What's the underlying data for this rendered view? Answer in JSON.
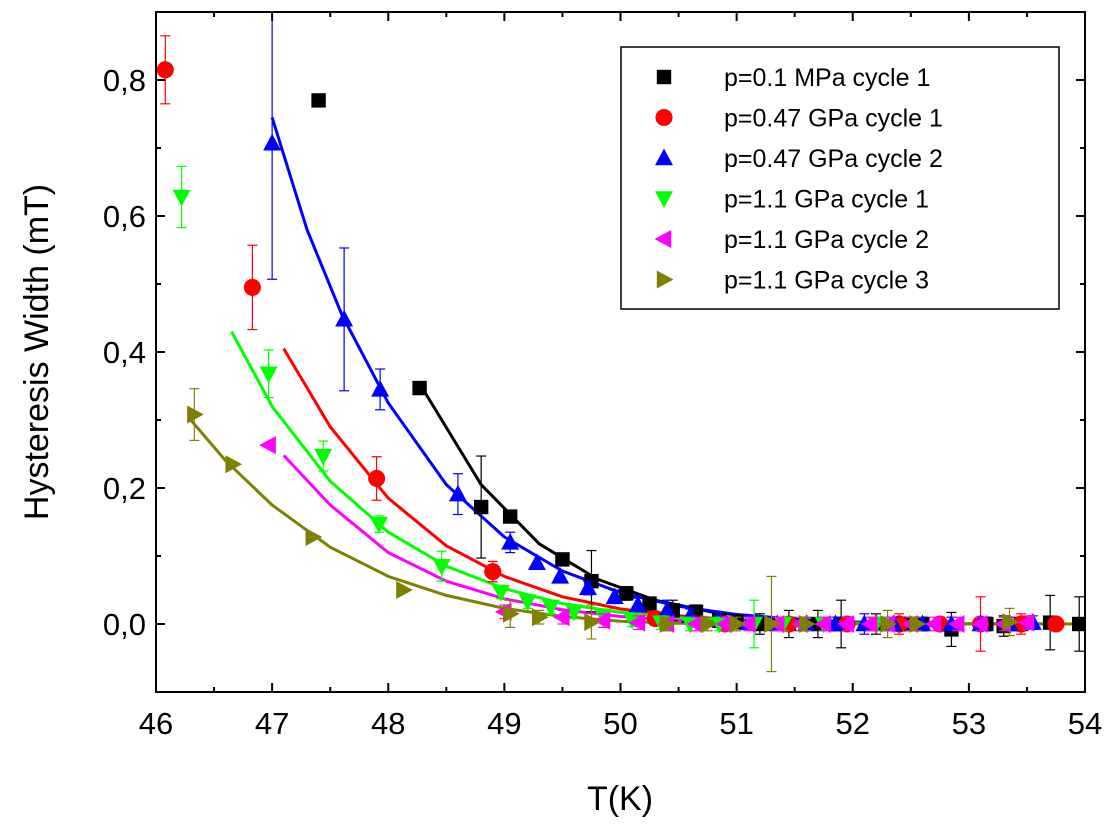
{
  "chart_data": {
    "type": "scatter",
    "xlabel": "T(K)",
    "ylabel": "Hysteresis Width (mT)",
    "xlim": [
      46,
      54
    ],
    "ylim": [
      -0.1,
      0.9
    ],
    "x_ticks": [
      46,
      47,
      48,
      49,
      50,
      51,
      52,
      53,
      54
    ],
    "x_tick_labels": [
      "46",
      "47",
      "48",
      "49",
      "50",
      "51",
      "52",
      "53",
      "54"
    ],
    "y_ticks": [
      0.0,
      0.2,
      0.4,
      0.6,
      0.8
    ],
    "y_tick_labels": [
      "0,0",
      "0,2",
      "0,4",
      "0,6",
      "0,8"
    ],
    "legend_position": "top-right",
    "grid": false,
    "series": [
      {
        "name": "p=0.1 MPa cycle 1",
        "marker": "square",
        "color": "#000000",
        "points": [
          [
            47.4,
            0.77,
            0
          ],
          [
            48.27,
            0.347,
            0
          ],
          [
            48.8,
            0.172,
            0.075
          ],
          [
            49.05,
            0.158,
            0
          ],
          [
            49.5,
            0.095,
            0
          ],
          [
            49.75,
            0.063,
            0.045
          ],
          [
            50.05,
            0.045,
            0.01
          ],
          [
            50.25,
            0.03,
            0
          ],
          [
            50.45,
            0.02,
            0.015
          ],
          [
            50.65,
            0.018,
            0.01
          ],
          [
            50.85,
            0.005,
            0.01
          ],
          [
            51.0,
            0.003,
            0.01
          ],
          [
            51.2,
            0.0,
            0.015
          ],
          [
            51.45,
            0.0,
            0.02
          ],
          [
            51.7,
            0.0,
            0.02
          ],
          [
            51.9,
            0.0,
            0.035
          ],
          [
            52.2,
            0.0,
            0.015
          ],
          [
            52.45,
            0.0,
            0.01
          ],
          [
            52.6,
            0.0,
            0.01
          ],
          [
            52.85,
            -0.008,
            0.025
          ],
          [
            53.15,
            0.0,
            0.01
          ],
          [
            53.3,
            -0.003,
            0.015
          ],
          [
            53.45,
            0.0,
            0.01
          ],
          [
            53.7,
            0.002,
            0.04
          ],
          [
            53.95,
            0.0,
            0.04
          ]
        ],
        "fit": [
          [
            48.3,
            0.345
          ],
          [
            48.8,
            0.205
          ],
          [
            49.3,
            0.118
          ],
          [
            49.8,
            0.066
          ],
          [
            50.3,
            0.035
          ],
          [
            50.8,
            0.017
          ],
          [
            51.3,
            0.008
          ],
          [
            51.8,
            0.003
          ],
          [
            52.3,
            0.001
          ],
          [
            53,
            0
          ],
          [
            54,
            0
          ]
        ]
      },
      {
        "name": "p=0.47 GPa cycle 1",
        "marker": "circle",
        "color": "#ff0000",
        "points": [
          [
            46.08,
            0.815,
            0.05
          ],
          [
            46.83,
            0.495,
            0.062
          ],
          [
            47.9,
            0.214,
            0.032
          ],
          [
            48.9,
            0.077,
            0.015
          ],
          [
            50.3,
            0.008,
            0.01
          ],
          [
            50.9,
            0.0,
            0.01
          ],
          [
            51.45,
            0.0,
            0.01
          ],
          [
            51.95,
            0.0,
            0.01
          ],
          [
            52.4,
            0.0,
            0.015
          ],
          [
            52.75,
            0.0,
            0.01
          ],
          [
            53.1,
            0.0,
            0.04
          ],
          [
            53.45,
            0.0,
            0.015
          ],
          [
            53.75,
            0.0,
            0.01
          ]
        ],
        "fit": [
          [
            47.1,
            0.405
          ],
          [
            47.5,
            0.29
          ],
          [
            48.0,
            0.185
          ],
          [
            48.5,
            0.115
          ],
          [
            49.0,
            0.07
          ],
          [
            49.5,
            0.04
          ],
          [
            50.0,
            0.022
          ],
          [
            50.5,
            0.012
          ],
          [
            51.0,
            0.006
          ],
          [
            51.5,
            0.003
          ],
          [
            52.5,
            0.001
          ],
          [
            54,
            0
          ]
        ]
      },
      {
        "name": "p=0.47 GPa cycle 2",
        "marker": "triangle-up",
        "color": "#0000ff",
        "points": [
          [
            47.0,
            0.707,
            0.2
          ],
          [
            47.62,
            0.448,
            0.105
          ],
          [
            47.93,
            0.345,
            0.03
          ],
          [
            48.6,
            0.191,
            0.03
          ],
          [
            49.05,
            0.12,
            0.015
          ],
          [
            49.28,
            0.09,
            0
          ],
          [
            49.48,
            0.07,
            0
          ],
          [
            49.72,
            0.053,
            0.01
          ],
          [
            49.95,
            0.04,
            0.01
          ],
          [
            50.15,
            0.028,
            0.01
          ],
          [
            50.4,
            0.02,
            0.015
          ],
          [
            50.6,
            0.012,
            0.01
          ],
          [
            50.85,
            0.006,
            0.01
          ],
          [
            51.1,
            0.002,
            0.01
          ],
          [
            51.35,
            0.0,
            0.01
          ],
          [
            51.6,
            0.0,
            0.01
          ],
          [
            51.85,
            0.0,
            0.01
          ],
          [
            52.1,
            0.0,
            0.015
          ],
          [
            52.35,
            0.0,
            0.01
          ],
          [
            52.6,
            0.0,
            0.01
          ],
          [
            52.85,
            0.0,
            0.01
          ],
          [
            53.1,
            0.0,
            0.01
          ],
          [
            53.35,
            0.0,
            0.01
          ],
          [
            53.55,
            0.002,
            0.01
          ]
        ],
        "fit": [
          [
            47.0,
            0.745
          ],
          [
            47.3,
            0.58
          ],
          [
            47.6,
            0.455
          ],
          [
            48.0,
            0.325
          ],
          [
            48.5,
            0.205
          ],
          [
            49.0,
            0.128
          ],
          [
            49.5,
            0.078
          ],
          [
            50.0,
            0.046
          ],
          [
            50.5,
            0.026
          ],
          [
            51.0,
            0.014
          ],
          [
            51.5,
            0.007
          ],
          [
            52.0,
            0.003
          ],
          [
            53.0,
            0
          ],
          [
            54,
            0
          ]
        ]
      },
      {
        "name": "p=1.1 GPa cycle 1",
        "marker": "triangle-down",
        "color": "#00ff00",
        "points": [
          [
            46.22,
            0.628,
            0.045
          ],
          [
            46.97,
            0.368,
            0.035
          ],
          [
            47.44,
            0.247,
            0.022
          ],
          [
            47.92,
            0.147,
            0.012
          ],
          [
            48.46,
            0.085,
            0.022
          ],
          [
            48.97,
            0.047,
            0.01
          ],
          [
            49.2,
            0.033,
            0.01
          ],
          [
            49.4,
            0.025,
            0.01
          ],
          [
            49.6,
            0.018,
            0.01
          ],
          [
            49.85,
            0.012,
            0.01
          ],
          [
            50.1,
            0.006,
            0.01
          ],
          [
            50.35,
            0.002,
            0.01
          ],
          [
            50.6,
            0.0,
            0.01
          ],
          [
            50.85,
            0.0,
            0.01
          ],
          [
            51.15,
            0.0,
            0.035
          ],
          [
            51.4,
            0.0,
            0.01
          ],
          [
            51.75,
            0.0,
            0.01
          ],
          [
            52.2,
            0.0,
            0.01
          ]
        ],
        "fit": [
          [
            46.65,
            0.43
          ],
          [
            47.0,
            0.32
          ],
          [
            47.5,
            0.21
          ],
          [
            48.0,
            0.135
          ],
          [
            48.5,
            0.085
          ],
          [
            49.0,
            0.052
          ],
          [
            49.5,
            0.03
          ],
          [
            50.0,
            0.017
          ],
          [
            50.5,
            0.009
          ],
          [
            51.0,
            0.004
          ],
          [
            52.0,
            0.001
          ],
          [
            54,
            0
          ]
        ]
      },
      {
        "name": "p=1.1 GPa cycle 2",
        "marker": "triangle-left",
        "color": "#ff00ff",
        "points": [
          [
            46.97,
            0.263,
            0
          ],
          [
            49.0,
            0.018,
            0.01
          ],
          [
            49.5,
            0.01,
            0.01
          ],
          [
            49.85,
            0.005,
            0.01
          ],
          [
            50.15,
            0.002,
            0.01
          ],
          [
            50.4,
            0.0,
            0.01
          ],
          [
            50.65,
            0.0,
            0.01
          ],
          [
            50.9,
            0.0,
            0.01
          ],
          [
            51.1,
            0.0,
            0.01
          ],
          [
            51.35,
            0.0,
            0.01
          ],
          [
            51.55,
            0.0,
            0.01
          ],
          [
            51.75,
            0.0,
            0.01
          ],
          [
            51.95,
            0.0,
            0.01
          ],
          [
            52.15,
            0.0,
            0.01
          ],
          [
            52.3,
            0.0,
            0.01
          ],
          [
            52.5,
            0.0,
            0.01
          ],
          [
            52.7,
            0.0,
            0.01
          ],
          [
            52.9,
            0.0,
            0.01
          ],
          [
            53.1,
            0.0,
            0.01
          ],
          [
            53.3,
            0.0,
            0.01
          ],
          [
            53.5,
            0.002,
            0.01
          ]
        ],
        "fit": [
          [
            47.1,
            0.248
          ],
          [
            47.5,
            0.175
          ],
          [
            48.0,
            0.105
          ],
          [
            48.5,
            0.063
          ],
          [
            49.0,
            0.037
          ],
          [
            49.5,
            0.021
          ],
          [
            50.0,
            0.011
          ],
          [
            50.5,
            0.005
          ],
          [
            51.0,
            0.002
          ],
          [
            52.0,
            0
          ],
          [
            54,
            0
          ]
        ]
      },
      {
        "name": "p=1.1 GPa cycle 3",
        "marker": "triangle-right",
        "color": "#808000",
        "points": [
          [
            46.33,
            0.308,
            0.038
          ],
          [
            46.66,
            0.235,
            0
          ],
          [
            47.35,
            0.128,
            0
          ],
          [
            48.13,
            0.05,
            0
          ],
          [
            49.05,
            0.015,
            0.02
          ],
          [
            49.3,
            0.01,
            0.01
          ],
          [
            49.75,
            0.003,
            0.025
          ],
          [
            50.4,
            0.0,
            0.01
          ],
          [
            50.75,
            0.0,
            0.01
          ],
          [
            51.0,
            0.0,
            0.01
          ],
          [
            51.3,
            0.0,
            0.07
          ],
          [
            51.6,
            0.0,
            0.01
          ],
          [
            52.3,
            0.0,
            0.02
          ],
          [
            52.55,
            0.0,
            0.01
          ],
          [
            53.35,
            0.003,
            0.02
          ]
        ],
        "fit": [
          [
            46.3,
            0.3
          ],
          [
            46.6,
            0.24
          ],
          [
            47.0,
            0.175
          ],
          [
            47.5,
            0.113
          ],
          [
            48.0,
            0.07
          ],
          [
            48.5,
            0.042
          ],
          [
            49.0,
            0.023
          ],
          [
            49.5,
            0.011
          ],
          [
            50.0,
            0.004
          ],
          [
            50.5,
            0.001
          ],
          [
            51.0,
            0
          ],
          [
            54,
            0
          ]
        ]
      }
    ]
  }
}
